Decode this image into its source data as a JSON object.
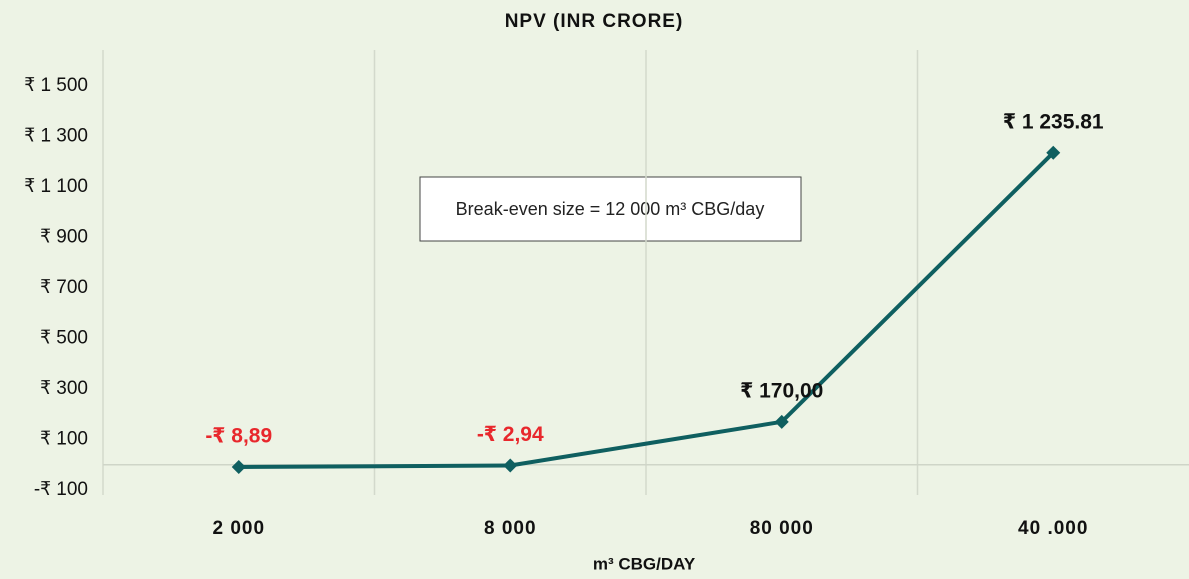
{
  "chart_data": {
    "type": "line",
    "title": "NPV (INR CRORE)",
    "x_label": "m³ CBG/DAY",
    "annotation": "Break-even size = 12 000 m³ CBG/day",
    "categories": [
      "2 000",
      "8 000",
      "80 000",
      "40 .000"
    ],
    "series": [
      {
        "name": "NPV",
        "color": "#0f5f60",
        "values": [
          -8.89,
          -2.94,
          170,
          1235.81
        ],
        "value_labels": [
          "-₹ 8,89",
          "-₹ 2,94",
          "₹ 170,00",
          "₹ 1 235.81"
        ]
      }
    ],
    "ylim": [
      -100,
      1600
    ],
    "yticks": [
      {
        "value": -100,
        "label": "-₹ 100"
      },
      {
        "value": 100,
        "label": "₹ 100"
      },
      {
        "value": 300,
        "label": "₹ 300"
      },
      {
        "value": 500,
        "label": "₹ 500"
      },
      {
        "value": 700,
        "label": "₹ 700"
      },
      {
        "value": 900,
        "label": "₹ 900"
      },
      {
        "value": 1100,
        "label": "₹ 1 100"
      },
      {
        "value": 1300,
        "label": "₹ 1 300"
      },
      {
        "value": 1500,
        "label": "₹ 1 500"
      }
    ],
    "negative_label_color": "#e8272c",
    "positive_label_color": "#111111"
  }
}
